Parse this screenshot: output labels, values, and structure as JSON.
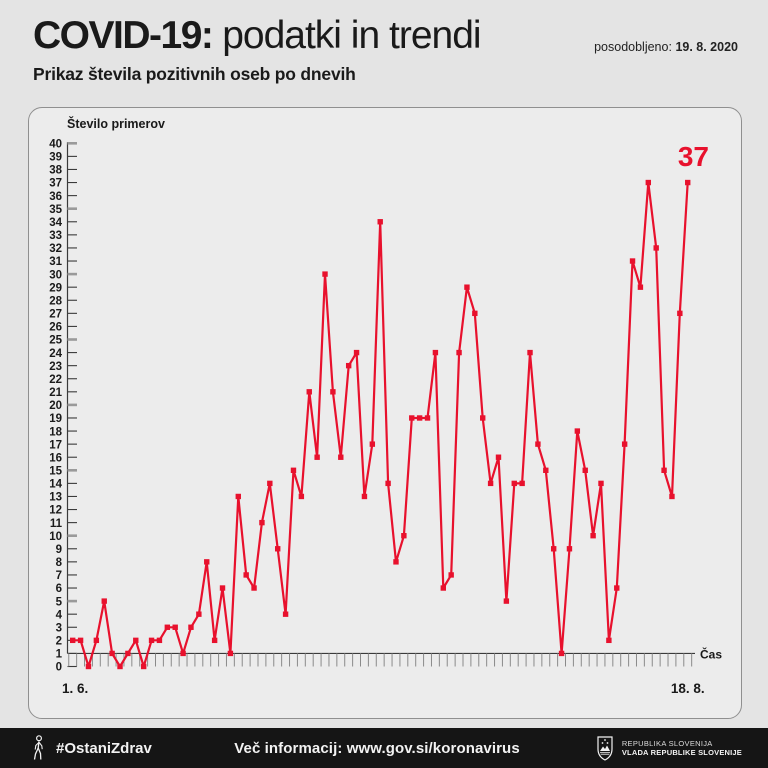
{
  "header": {
    "title_strong": "COVID-19:",
    "title_rest": " podatki in trendi",
    "updated_label": "posodobljeno:",
    "updated_date": "19. 8. 2020",
    "subtitle": "Prikaz števila pozitivnih oseb po dnevih"
  },
  "chart_data": {
    "type": "line",
    "title": "Prikaz števila pozitivnih oseb po dnevih",
    "ylabel": "Število primerov",
    "xlabel": "Čas",
    "x_start_label": "1. 6.",
    "x_end_label": "18. 8.",
    "ylim": [
      0,
      40
    ],
    "yticks": [
      0,
      1,
      2,
      3,
      4,
      5,
      6,
      7,
      8,
      9,
      10,
      11,
      12,
      13,
      14,
      15,
      16,
      17,
      18,
      19,
      20,
      21,
      22,
      23,
      24,
      25,
      26,
      27,
      28,
      29,
      30,
      31,
      32,
      33,
      34,
      35,
      36,
      37,
      38,
      39,
      40
    ],
    "series": [
      {
        "name": "Število pozitivnih oseb po dnevih",
        "values": [
          2,
          2,
          0,
          2,
          5,
          1,
          0,
          1,
          2,
          0,
          2,
          2,
          3,
          3,
          1,
          3,
          4,
          8,
          2,
          6,
          1,
          13,
          7,
          6,
          11,
          14,
          9,
          4,
          15,
          13,
          21,
          16,
          30,
          21,
          16,
          23,
          24,
          13,
          17,
          34,
          14,
          8,
          10,
          19,
          19,
          19,
          24,
          6,
          7,
          24,
          29,
          27,
          19,
          14,
          16,
          5,
          14,
          14,
          24,
          17,
          15,
          9,
          1,
          9,
          18,
          15,
          10,
          14,
          2,
          6,
          17,
          31,
          29,
          37,
          32,
          15,
          13,
          27,
          37
        ]
      }
    ],
    "last_value_label": "37",
    "line_color": "#e8112d",
    "grid": false,
    "legend": "none"
  },
  "footer": {
    "hashtag": "#OstaniZdrav",
    "info": "Več informacij: www.gov.si/koronavirus",
    "gov_line1": "REPUBLIKA SLOVENIJA",
    "gov_line2": "VLADA REPUBLIKE SLOVENIJE",
    "icons": {
      "person": "walking-person-icon",
      "coat_of_arms": "slovenia-coat-of-arms-icon"
    }
  }
}
